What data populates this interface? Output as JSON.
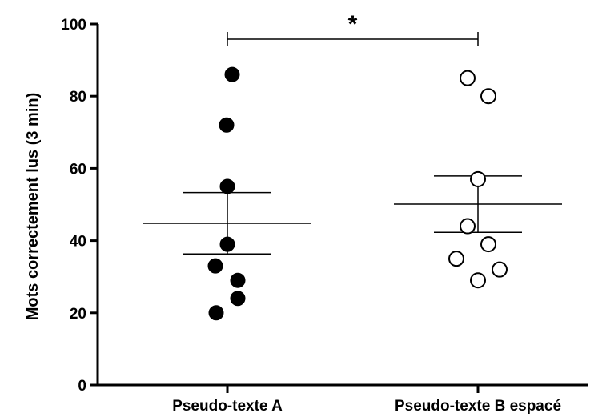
{
  "chart_data": {
    "type": "scatter",
    "title": "",
    "xlabel": "",
    "ylabel": "Mots correctement lus (3 min)",
    "ylim": [
      0,
      100
    ],
    "yticks": [
      0,
      20,
      40,
      60,
      80,
      100
    ],
    "grid": false,
    "categories": [
      "Pseudo-texte A",
      "Pseudo-texte B espacé"
    ],
    "series": [
      {
        "category": "Pseudo-texte A",
        "marker": "filled-circle",
        "values": [
          86,
          72,
          55,
          39,
          33,
          29,
          24,
          20
        ],
        "mean": 44.8,
        "sem_lower": 36.3,
        "sem_upper": 53.3
      },
      {
        "category": "Pseudo-texte B espacé",
        "marker": "open-circle",
        "values": [
          85,
          80,
          57,
          44,
          39,
          35,
          32,
          29
        ],
        "mean": 50.1,
        "sem_lower": 42.3,
        "sem_upper": 57.9
      }
    ],
    "annotations": [
      {
        "type": "significance",
        "between": [
          "Pseudo-texte A",
          "Pseudo-texte B espacé"
        ],
        "label": "*"
      }
    ]
  }
}
